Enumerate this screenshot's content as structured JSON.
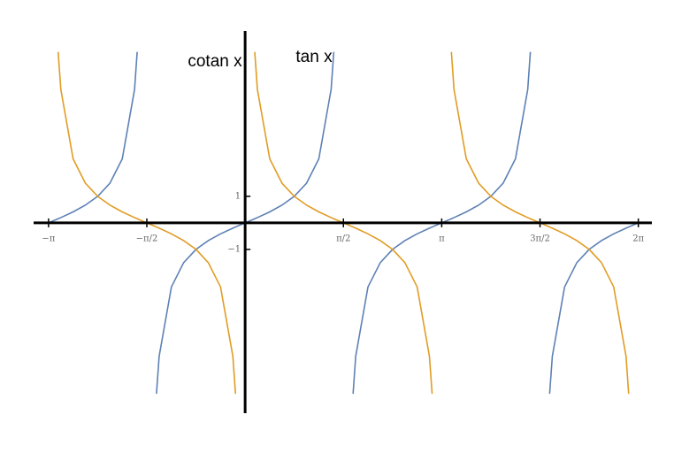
{
  "chart_data": {
    "type": "line",
    "x": [
      -3.142,
      -2.988,
      -2.945,
      -2.749,
      -2.553,
      -2.356,
      -2.16,
      -1.963,
      -1.767,
      -1.725,
      -1.571,
      -1.417,
      -1.374,
      -1.178,
      -0.982,
      -0.785,
      -0.589,
      -0.393,
      -0.196,
      -0.154,
      0,
      0.154,
      0.196,
      0.393,
      0.589,
      0.785,
      0.982,
      1.178,
      1.374,
      1.417,
      1.571,
      1.725,
      1.767,
      1.963,
      2.16,
      2.356,
      2.553,
      2.749,
      2.945,
      2.988,
      3.142,
      3.296,
      3.338,
      3.534,
      3.731,
      3.927,
      4.123,
      4.32,
      4.516,
      4.558,
      4.712,
      4.866,
      4.909,
      5.105,
      5.301,
      5.498,
      5.694,
      5.89,
      6.087,
      6.129,
      6.283
    ],
    "series": [
      {
        "name": "tan x",
        "color": "#5e81b5",
        "values": [
          0,
          0.155,
          0.199,
          0.414,
          0.668,
          1,
          1.497,
          2.414,
          5.027,
          6.44,
          null,
          -6.44,
          -5.027,
          -2.414,
          -1.497,
          -1,
          -0.668,
          -0.414,
          -0.199,
          -0.155,
          0,
          0.155,
          0.199,
          0.414,
          0.668,
          1,
          1.497,
          2.414,
          5.027,
          6.44,
          null,
          -6.44,
          -5.027,
          -2.414,
          -1.497,
          -1,
          -0.668,
          -0.414,
          -0.199,
          -0.155,
          0,
          0.155,
          0.199,
          0.414,
          0.668,
          1,
          1.497,
          2.414,
          5.027,
          6.44,
          null,
          -6.44,
          -5.027,
          -2.414,
          -1.497,
          -1,
          -0.668,
          -0.414,
          -0.199,
          -0.155,
          0
        ]
      },
      {
        "name": "cotan x",
        "color": "#e19c24",
        "values": [
          null,
          6.44,
          5.027,
          2.414,
          1.497,
          1,
          0.668,
          0.414,
          0.199,
          0.155,
          0,
          -0.155,
          -0.199,
          -0.414,
          -0.668,
          -1,
          -1.497,
          -2.414,
          -5.027,
          -6.44,
          null,
          6.44,
          5.027,
          2.414,
          1.497,
          1,
          0.668,
          0.414,
          0.199,
          0.155,
          0,
          -0.155,
          -0.199,
          -0.414,
          -0.668,
          -1,
          -1.497,
          -2.414,
          -5.027,
          -6.44,
          null,
          6.44,
          5.027,
          2.414,
          1.497,
          1,
          0.668,
          0.414,
          0.199,
          0.155,
          0,
          -0.155,
          -0.199,
          -0.414,
          -0.668,
          -1,
          -1.497,
          -2.414,
          -5.027,
          -6.44,
          null
        ]
      }
    ],
    "xlim": [
      -3.38,
      6.5
    ],
    "ylim": [
      -7.17,
      7.23
    ],
    "xticks": [
      {
        "value": -3.14159,
        "label": "−π"
      },
      {
        "value": -1.5708,
        "label": "−π/2"
      },
      {
        "value": 1.5708,
        "label": "π/2"
      },
      {
        "value": 3.14159,
        "label": "π"
      },
      {
        "value": 4.71239,
        "label": "3π/2"
      },
      {
        "value": 6.28319,
        "label": "2π"
      }
    ],
    "yticks": [
      1,
      {
        "value": -1,
        "label": "−1"
      }
    ]
  }
}
